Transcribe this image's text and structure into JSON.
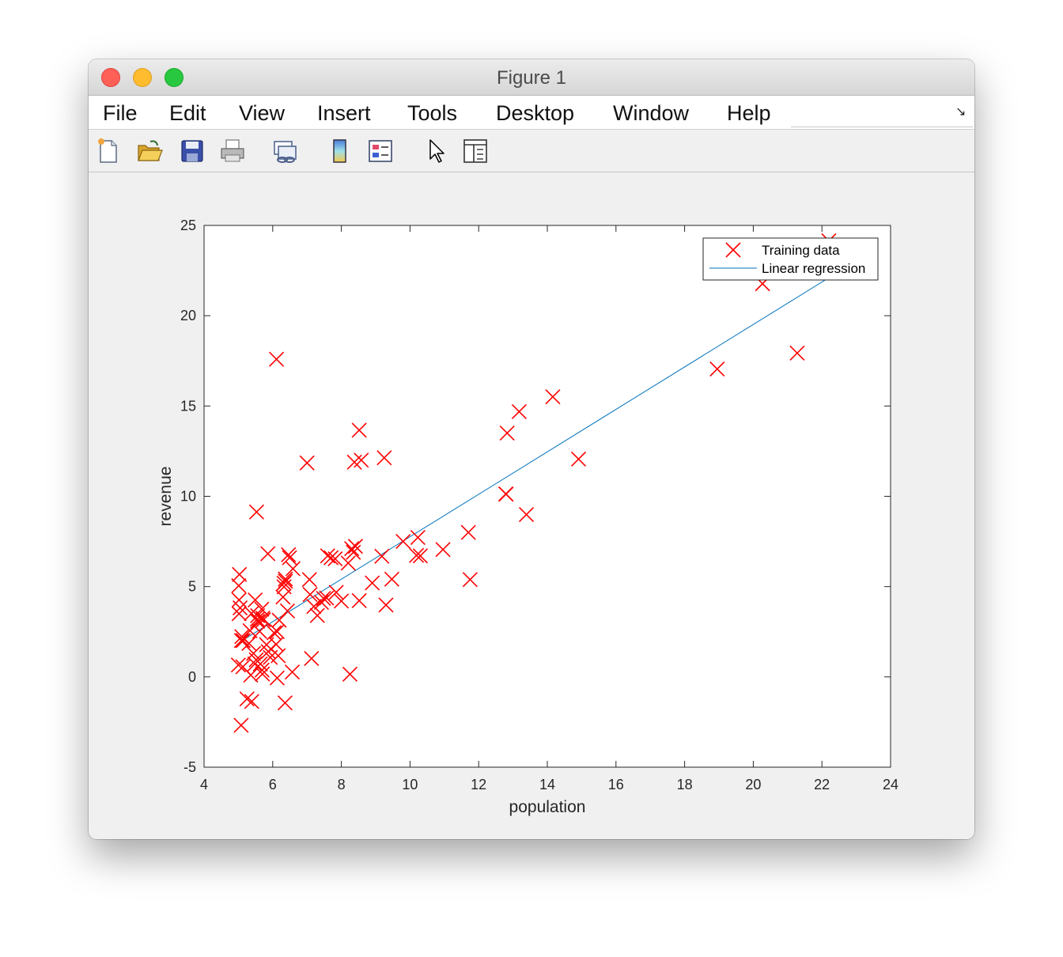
{
  "window": {
    "title": "Figure 1"
  },
  "menubar": {
    "items": [
      "File",
      "Edit",
      "View",
      "Insert",
      "Tools",
      "Desktop",
      "Window",
      "Help"
    ]
  },
  "toolbar": {
    "icons": [
      "new-figure-icon",
      "open-file-icon",
      "save-icon",
      "print-icon",
      "link-plot-icon",
      "colorbar-icon",
      "legend-icon",
      "edit-plot-arrow-icon",
      "property-inspector-icon"
    ]
  },
  "colors": {
    "markers": "#ff0000",
    "regression_line": "#0072bd",
    "axes_background": "#ffffff",
    "figure_background": "#f0f0f0"
  },
  "chart_data": {
    "type": "scatter",
    "title": "",
    "xlabel": "population",
    "ylabel": "revenue",
    "xlim": [
      4,
      24
    ],
    "ylim": [
      -5,
      25
    ],
    "xticks": [
      4,
      6,
      8,
      10,
      12,
      14,
      16,
      18,
      20,
      22,
      24
    ],
    "yticks": [
      -5,
      0,
      5,
      10,
      15,
      20,
      25
    ],
    "grid": false,
    "legend_position": "top-right",
    "series": [
      {
        "name": "Training data",
        "kind": "scatter",
        "marker": "x",
        "color": "#ff0000",
        "points": [
          [
            6.11,
            17.59
          ],
          [
            5.53,
            9.13
          ],
          [
            8.52,
            13.66
          ],
          [
            7.0,
            11.85
          ],
          [
            5.86,
            6.82
          ],
          [
            8.38,
            11.89
          ],
          [
            7.48,
            4.35
          ],
          [
            8.58,
            12.0
          ],
          [
            6.49,
            6.6
          ],
          [
            5.05,
            3.82
          ],
          [
            5.71,
            3.25
          ],
          [
            14.16,
            15.51
          ],
          [
            5.73,
            3.16
          ],
          [
            8.41,
            7.23
          ],
          [
            5.64,
            0.72
          ],
          [
            5.38,
            3.51
          ],
          [
            6.37,
            5.3
          ],
          [
            5.13,
            0.56
          ],
          [
            6.43,
            3.65
          ],
          [
            7.07,
            5.39
          ],
          [
            6.19,
            3.14
          ],
          [
            20.27,
            21.77
          ],
          [
            5.49,
            4.26
          ],
          [
            6.33,
            5.19
          ],
          [
            5.56,
            3.08
          ],
          [
            18.95,
            17.05
          ],
          [
            12.83,
            13.5
          ],
          [
            10.96,
            7.05
          ],
          [
            13.18,
            14.69
          ],
          [
            22.2,
            24.15
          ],
          [
            5.25,
            -1.22
          ],
          [
            6.59,
            5.99
          ],
          [
            9.25,
            12.13
          ],
          [
            5.31,
            1.85
          ],
          [
            7.82,
            6.54
          ],
          [
            7.09,
            4.56
          ],
          [
            5.02,
            4.26
          ],
          [
            5.56,
            3.39
          ],
          [
            5.34,
            2.56
          ],
          [
            14.91,
            12.06
          ],
          [
            7.85,
            4.68
          ],
          [
            7.13,
            1.02
          ],
          [
            6.13,
            2.51
          ],
          [
            6.16,
            1.17
          ],
          [
            5.39,
            -1.36
          ],
          [
            9.18,
            6.68
          ],
          [
            6.3,
            4.42
          ],
          [
            6.33,
            4.99
          ],
          [
            5.09,
            2.01
          ],
          [
            5.02,
            3.5
          ],
          [
            5.7,
            0.16
          ],
          [
            21.28,
            17.93
          ],
          [
            5.52,
            0.95
          ],
          [
            5.82,
            1.78
          ],
          [
            6.13,
            -0.06
          ],
          [
            11.7,
            8.0
          ],
          [
            5.87,
            1.4
          ],
          [
            11.75,
            5.39
          ],
          [
            6.36,
            -1.44
          ],
          [
            5.68,
            3.75
          ],
          [
            9.47,
            5.41
          ],
          [
            5.55,
            3.19
          ],
          [
            8.52,
            4.22
          ],
          [
            6.57,
            0.27
          ],
          [
            5.48,
            0.72
          ],
          [
            6.04,
            2.44
          ],
          [
            5.93,
            1.08
          ],
          [
            8.35,
            6.9
          ],
          [
            8.25,
            0.15
          ],
          [
            5.03,
            5.67
          ],
          [
            5.01,
            5.05
          ],
          [
            6.37,
            5.42
          ],
          [
            12.8,
            10.12
          ],
          [
            6.46,
            6.76
          ],
          [
            5.62,
            2.52
          ],
          [
            5.69,
            0.38
          ],
          [
            7.57,
            4.37
          ],
          [
            10.19,
            6.73
          ],
          [
            5.14,
            2.01
          ],
          [
            12.79,
            10.13
          ],
          [
            5.1,
            2.23
          ],
          [
            8.3,
            7.1
          ],
          [
            10.23,
            7.72
          ],
          [
            5.36,
            0.1
          ],
          [
            13.39,
            8.99
          ],
          [
            5.44,
            1.3
          ],
          [
            5.08,
            -2.68
          ],
          [
            9.3,
            3.98
          ],
          [
            7.42,
            4.13
          ],
          [
            5.0,
            0.66
          ],
          [
            6.1,
            1.8
          ],
          [
            7.6,
            6.7
          ],
          [
            9.8,
            7.5
          ],
          [
            8.9,
            5.2
          ],
          [
            8.2,
            6.3
          ],
          [
            7.3,
            3.4
          ],
          [
            7.7,
            6.6
          ],
          [
            8.0,
            4.2
          ],
          [
            7.2,
            3.9
          ],
          [
            10.3,
            6.7
          ]
        ]
      },
      {
        "name": "Linear regression",
        "kind": "line",
        "color": "#0072bd",
        "points": [
          [
            5.1,
            2.0
          ],
          [
            22.2,
            22.1
          ]
        ]
      }
    ]
  }
}
